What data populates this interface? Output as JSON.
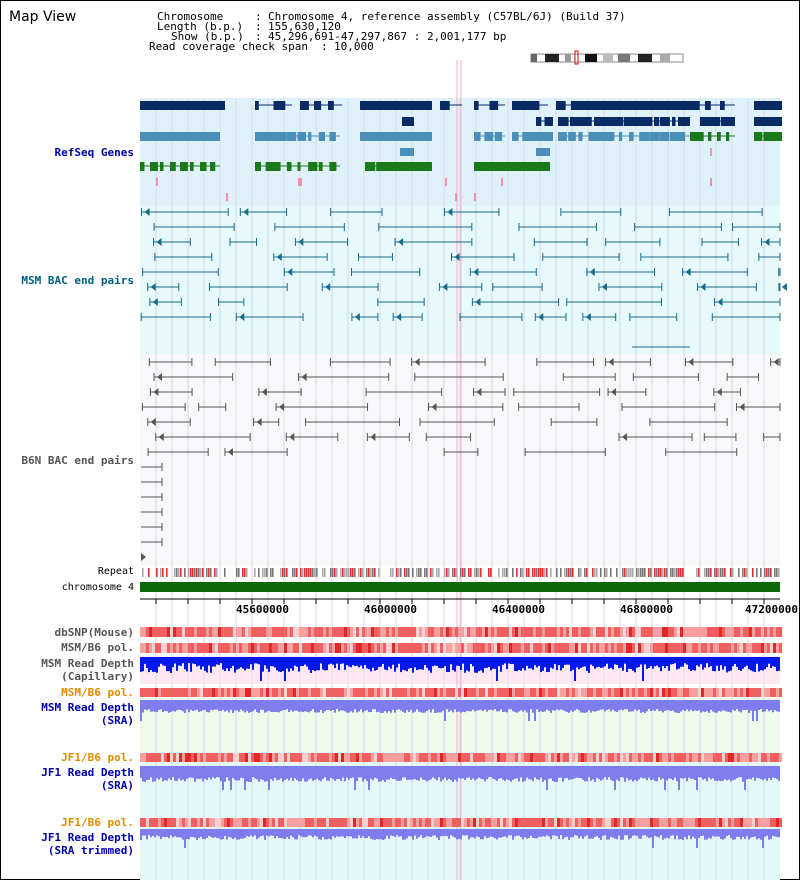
{
  "view_title": "Map View",
  "info": {
    "chromosome_label": "Chromosome",
    "chromosome_value": "Chromosome 4, reference assembly (C57BL/6J) (Build 37)",
    "length_label": "Length (b.p.)",
    "length_value": "155,630,120",
    "show_label": "Show (b.p.)",
    "show_value": "45,296,691-47,297,867 : 2,001,177 bp",
    "coverage_label": "Read coverage check span",
    "coverage_value": "10,000"
  },
  "tracks": {
    "refseq": "RefSeq Genes",
    "msm_bac": "MSM BAC end pairs",
    "b6n_bac": "B6N BAC end pairs",
    "repeat": "Repeat",
    "chromosome": "chromosome 4",
    "dbsnp": "dbSNP(Mouse)",
    "msm_b6_pol_1": "MSM/B6 pol.",
    "msm_read_depth_cap_1": "MSM Read Depth",
    "msm_read_depth_cap_2": "(Capillary)",
    "msm_b6_pol_2": "MSM/B6 pol.",
    "msm_read_depth_sra_1": "MSM Read Depth",
    "msm_read_depth_sra_2": "(SRA)",
    "jf1_b6_pol_1": "JF1/B6 pol.",
    "jf1_read_depth_sra_1": "JF1 Read Depth",
    "jf1_read_depth_sra_2": "(SRA)",
    "jf1_b6_pol_2": "JF1/B6 pol.",
    "jf1_read_depth_trim_1": "JF1 Read Depth",
    "jf1_read_depth_trim_2": "(SRA trimmed)"
  },
  "axis_ticks": [
    "45600000",
    "46000000",
    "46400000",
    "46800000",
    "47200000"
  ],
  "colors": {
    "refseq_dark": "#0a2a66",
    "refseq_mid": "#4a8fb8",
    "refseq_green": "#1a7a1a",
    "msm_bac": "#1a6a8a",
    "b6n_bac": "#555555",
    "label_blue": "#0000aa",
    "label_teal": "#006080",
    "label_orange": "#e08a00",
    "depth_blue": "#0018e8",
    "depth_light": "#7d7dee",
    "pol_red": "#f03030",
    "chromosome_green": "#0a6a0a"
  }
}
